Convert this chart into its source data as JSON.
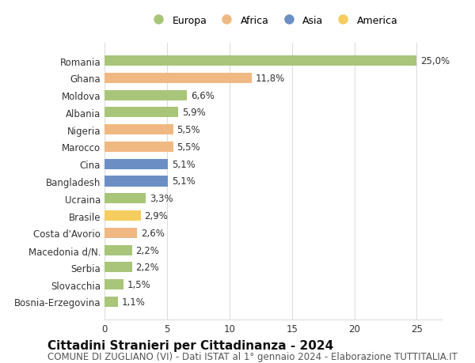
{
  "countries": [
    "Romania",
    "Ghana",
    "Moldova",
    "Albania",
    "Nigeria",
    "Marocco",
    "Cina",
    "Bangladesh",
    "Ucraina",
    "Brasile",
    "Costa d'Avorio",
    "Macedonia d/N.",
    "Serbia",
    "Slovacchia",
    "Bosnia-Erzegovina"
  ],
  "values": [
    25.0,
    11.8,
    6.6,
    5.9,
    5.5,
    5.5,
    5.1,
    5.1,
    3.3,
    2.9,
    2.6,
    2.2,
    2.2,
    1.5,
    1.1
  ],
  "continents": [
    "Europa",
    "Africa",
    "Europa",
    "Europa",
    "Africa",
    "Africa",
    "Asia",
    "Asia",
    "Europa",
    "America",
    "Africa",
    "Europa",
    "Europa",
    "Europa",
    "Europa"
  ],
  "continent_colors": {
    "Europa": "#a8c57a",
    "Africa": "#f0b882",
    "Asia": "#6b8fc4",
    "America": "#f5cc5e"
  },
  "legend_order": [
    "Europa",
    "Africa",
    "Asia",
    "America"
  ],
  "title": "Cittadini Stranieri per Cittadinanza - 2024",
  "subtitle": "COMUNE DI ZUGLIANO (VI) - Dati ISTAT al 1° gennaio 2024 - Elaborazione TUTTITALIA.IT",
  "xlim": [
    0,
    27
  ],
  "xticks": [
    0,
    5,
    10,
    15,
    20,
    25
  ],
  "background_color": "#ffffff",
  "grid_color": "#dddddd",
  "bar_height": 0.6,
  "title_fontsize": 11,
  "subtitle_fontsize": 8.5,
  "label_fontsize": 8.5,
  "tick_fontsize": 8.5,
  "legend_fontsize": 9
}
